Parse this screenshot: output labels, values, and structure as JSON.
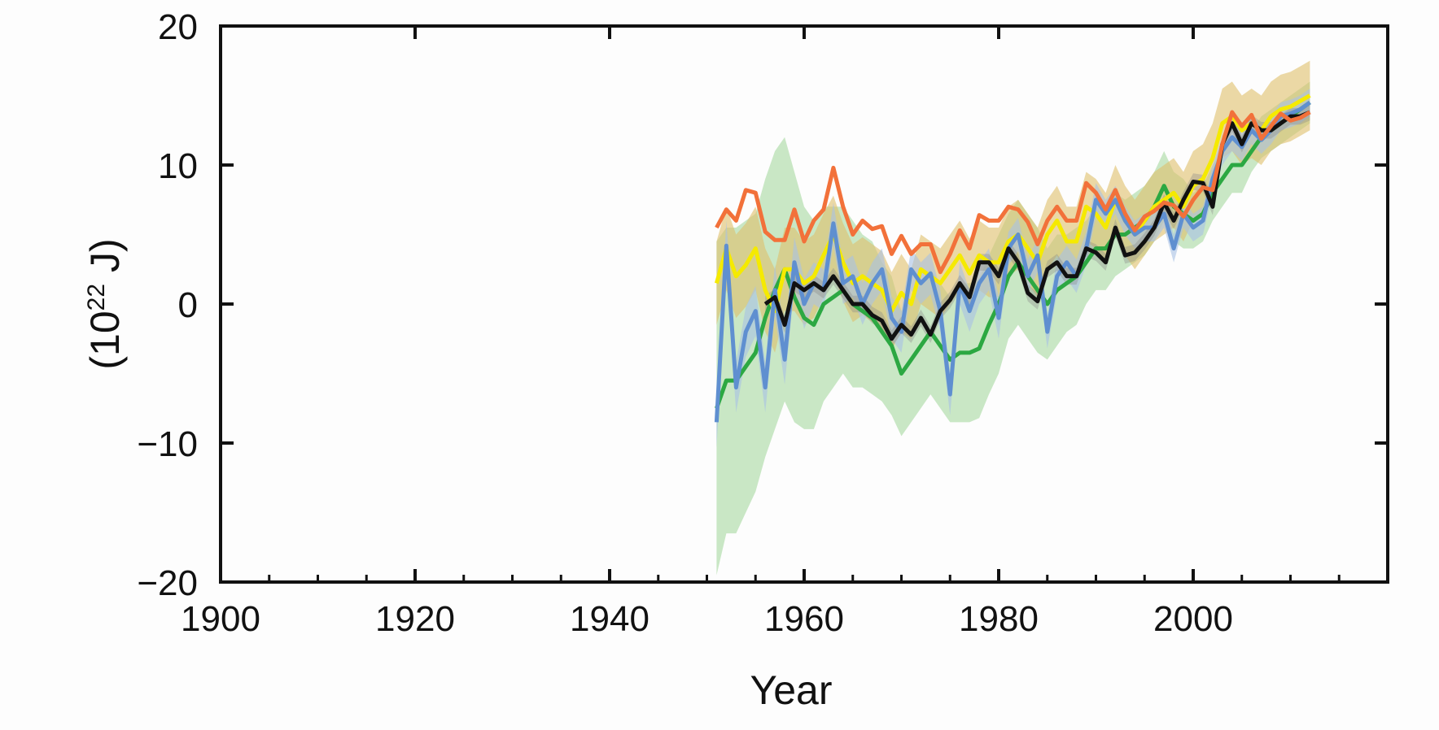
{
  "chart_data": {
    "type": "line",
    "title": "",
    "xlabel": "Year",
    "ylabel": "(10",
    "ylabel_sup": "22",
    "ylabel_unit": " J)",
    "xlim": [
      1900,
      2020
    ],
    "ylim": [
      -20,
      20
    ],
    "xticks": [
      1900,
      1920,
      1940,
      1960,
      1980,
      2000
    ],
    "xtick_labels": [
      "1900",
      "1920",
      "1940",
      "1960",
      "1980",
      "2000"
    ],
    "yticks": [
      -20,
      -10,
      0,
      10,
      20
    ],
    "ytick_labels": [
      "−20",
      "−10",
      "0",
      "10",
      "20"
    ],
    "grid": false,
    "legend": "none",
    "start_year": 1951,
    "series": [
      {
        "name": "green",
        "color": "#2ca842",
        "band_color": "#a6d8a0",
        "start": 1951,
        "values": [
          -7.5,
          -5.5,
          -5.5,
          -4.5,
          -3.5,
          -1,
          1,
          2.5,
          0.5,
          -1,
          -1.5,
          0,
          0.5,
          1,
          0,
          -0.5,
          -1,
          -2,
          -3,
          -5,
          -4,
          -3,
          -2,
          -3,
          -4,
          -3.5,
          -3.5,
          -3.2,
          -1.5,
          0,
          2,
          3,
          2,
          1,
          0,
          1,
          1.5,
          2,
          3,
          4,
          4,
          5,
          5,
          5.5,
          6,
          7,
          8.5,
          7,
          6.5,
          6,
          6.5,
          8,
          9,
          10,
          10,
          11,
          12,
          12.5,
          13,
          13.5,
          14,
          14.5
        ],
        "uncertainty": [
          12,
          11,
          11,
          10.5,
          10,
          10,
          10,
          9.5,
          9,
          8,
          7.5,
          7,
          6.5,
          6,
          6,
          5.5,
          5.5,
          5,
          5,
          4.5,
          4.5,
          4.5,
          4.5,
          4.5,
          4.5,
          5,
          5,
          5,
          5,
          5,
          4.5,
          4.5,
          4.5,
          4.5,
          4,
          4,
          3.5,
          3.5,
          3,
          3,
          3,
          3,
          2.5,
          2.5,
          2.5,
          2.5,
          2.5,
          2.5,
          2.5,
          2,
          2,
          2,
          2,
          2,
          2,
          1.5,
          1.5,
          1.5,
          1.5,
          1.5,
          1.5,
          1.5
        ]
      },
      {
        "name": "yellow",
        "color": "#f5ea00",
        "band_color": "#e0c06a",
        "start": 1951,
        "values": [
          1.5,
          4,
          2,
          2.8,
          4,
          1,
          -0.5,
          2.5,
          2.5,
          1.5,
          2,
          3.5,
          5,
          3,
          1.5,
          2,
          1.5,
          1,
          -0.5,
          0.8,
          0,
          2.5,
          2,
          1.5,
          2.5,
          3.5,
          2.2,
          3.5,
          3,
          3,
          4.5,
          5,
          4,
          3,
          5,
          6,
          4.5,
          4.5,
          7,
          6.5,
          5.5,
          7.5,
          6,
          5,
          6,
          7,
          7.5,
          8,
          7,
          8.5,
          9,
          10.5,
          13,
          13.5,
          12.5,
          13,
          12.5,
          13.5,
          14,
          14.2,
          14.6,
          15
        ],
        "uncertainty": [
          3,
          3,
          3,
          3,
          3,
          3,
          3,
          3,
          3,
          3,
          3,
          3,
          2.8,
          2.8,
          2.8,
          2.8,
          2.8,
          2.8,
          2.8,
          2.8,
          2.5,
          2.5,
          2.5,
          2.5,
          2.5,
          2.5,
          2.5,
          2.5,
          2.5,
          2.5,
          2.5,
          2.5,
          2.5,
          2.5,
          2.5,
          2.5,
          2.5,
          2.5,
          2.5,
          2.5,
          2.5,
          2.5,
          2.5,
          2.5,
          2.5,
          2.5,
          2.5,
          2.5,
          2.5,
          2.5,
          2.5,
          2.5,
          2.5,
          2.5,
          2.5,
          2.5,
          2.5,
          2.5,
          2.5,
          2.5,
          2.5,
          2.5
        ]
      },
      {
        "name": "blue",
        "color": "#5f8fd0",
        "band_color": "#a9c1e4",
        "start": 1951,
        "values": [
          -8.5,
          4.2,
          -6,
          -2,
          -0.5,
          -6,
          1,
          -4,
          3,
          0,
          1.5,
          1,
          5.8,
          1.5,
          2,
          0,
          1.5,
          2.5,
          -1,
          -2,
          2.5,
          1.5,
          2.2,
          -0.5,
          -6.5,
          1.5,
          -0.5,
          1.5,
          2.5,
          -1,
          4,
          5,
          2,
          3.5,
          -2,
          2,
          3,
          2,
          4,
          7.5,
          6.5,
          7.5,
          6,
          5,
          5.5,
          5.5,
          6.5,
          4,
          6.5,
          5.5,
          6,
          9,
          11,
          12,
          11.3,
          12.5,
          11.8,
          12.5,
          13.5,
          13.7,
          14,
          14.5
        ],
        "uncertainty": [
          1.8,
          1.8,
          1.8,
          1.8,
          1.8,
          1.8,
          1.8,
          1.8,
          1.8,
          1.8,
          1.5,
          1.5,
          1.5,
          1.5,
          1.5,
          1.5,
          1.5,
          1.5,
          1.5,
          1.5,
          1.5,
          1.5,
          1.5,
          1.5,
          1.5,
          1.5,
          1.5,
          1.5,
          1.5,
          1.5,
          1.2,
          1.2,
          1.2,
          1.2,
          1.2,
          1.2,
          1.2,
          1.2,
          1.2,
          1.2,
          1,
          1,
          1,
          1,
          1,
          1,
          1,
          1,
          1,
          1,
          1,
          1,
          1,
          1,
          1,
          1,
          1,
          1,
          1,
          1,
          1,
          1
        ]
      },
      {
        "name": "black",
        "color": "#111111",
        "band_color": "#888888",
        "start": 1956,
        "values": [
          0,
          0.5,
          -1.5,
          1.5,
          1,
          1.5,
          1,
          2,
          1,
          0,
          0,
          -0.8,
          -1.2,
          -2.5,
          -1.5,
          -2.2,
          -1,
          -2.2,
          -0.5,
          0.3,
          1.5,
          0.5,
          3,
          3,
          2,
          4,
          3,
          0.8,
          0.2,
          2.5,
          3,
          2,
          2,
          4,
          3.7,
          3,
          5.5,
          3.5,
          3.7,
          4.5,
          5.5,
          7.3,
          6,
          7.5,
          8.8,
          8.7,
          7,
          11.5,
          13,
          11.5,
          13,
          12.5,
          12.5,
          13,
          13.5,
          13.5,
          13.8
        ],
        "uncertainty": [
          0.6,
          0.6,
          0.6,
          0.6,
          0.6,
          0.6,
          0.6,
          0.6,
          0.6,
          0.6,
          0.6,
          0.6,
          0.6,
          0.6,
          0.6,
          0.6,
          0.6,
          0.6,
          0.6,
          0.6,
          0.6,
          0.6,
          0.6,
          0.6,
          0.6,
          0.6,
          0.6,
          0.6,
          0.6,
          0.6,
          0.6,
          0.6,
          0.6,
          0.6,
          0.6,
          0.6,
          0.6,
          0.6,
          0.6,
          0.6,
          0.6,
          0.6,
          0.6,
          0.6,
          0.6,
          0.6,
          0.6,
          0.6,
          0.6,
          0.6,
          0.6,
          0.6,
          0.6,
          0.6,
          0.6,
          0.6,
          0.6
        ]
      },
      {
        "name": "orange",
        "color": "#f2713a",
        "band_color": null,
        "start": 1951,
        "values": [
          5.5,
          6.8,
          6,
          8.2,
          8,
          5.2,
          4.6,
          4.6,
          6.8,
          4.5,
          6,
          6.8,
          9.8,
          7,
          5,
          6,
          5.4,
          5.6,
          3.6,
          4.9,
          3.6,
          4.3,
          4.3,
          2.3,
          3.6,
          5.3,
          4,
          6.4,
          6,
          6,
          7,
          6.8,
          5.9,
          4.3,
          6,
          7,
          6,
          6,
          8.7,
          8,
          6.8,
          8.2,
          6.5,
          5.3,
          6.3,
          6.7,
          7.3,
          7.1,
          6.3,
          7.5,
          8.4,
          8.2,
          11.5,
          13.8,
          12.8,
          13.6,
          11.9,
          12.8,
          13.7,
          13.2,
          13.4,
          13.8
        ],
        "uncertainty": null
      }
    ]
  }
}
